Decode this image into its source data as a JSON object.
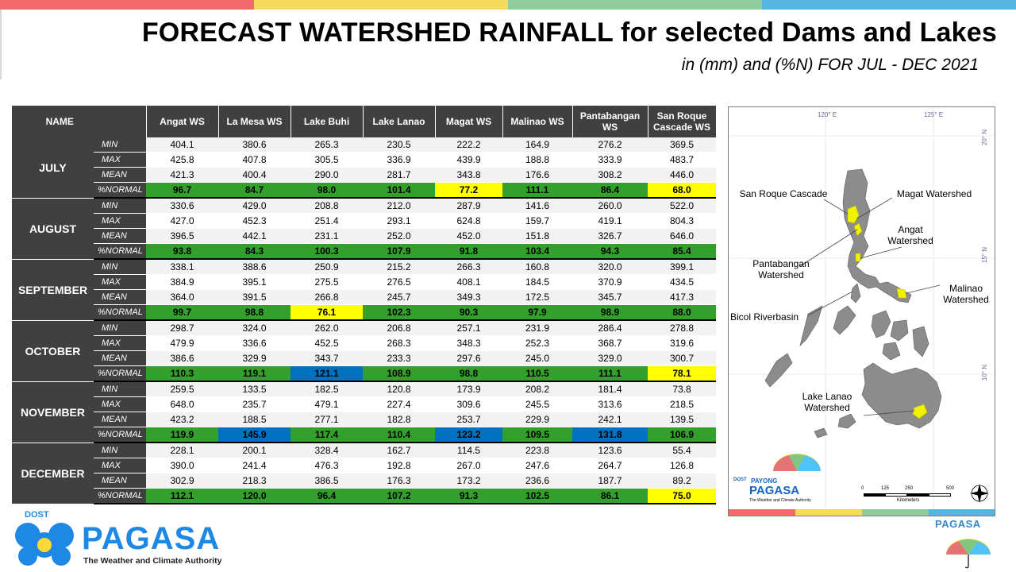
{
  "header": {
    "title": "FORECAST WATERSHED RAINFALL  for selected Dams and Lakes",
    "subtitle": "in (mm) and (%N) FOR JUL - DEC 2021",
    "stripe_colors": [
      "#f26b6b",
      "#f5da5b",
      "#8fcb9b",
      "#55b4e0"
    ]
  },
  "table": {
    "name_header": "NAME",
    "columns": [
      "Angat WS",
      "La Mesa WS",
      "Lake Buhi",
      "Lake Lanao",
      "Magat WS",
      "Malinao WS",
      "Pantabangan WS",
      "San Roque Cascade WS"
    ],
    "row_labels": [
      "MIN",
      "MAX",
      "MEAN",
      "%NORMAL"
    ],
    "months": [
      {
        "name": "JULY",
        "min": [
          "404.1",
          "380.6",
          "265.3",
          "230.5",
          "222.2",
          "164.9",
          "276.2",
          "369.5"
        ],
        "max": [
          "425.8",
          "407.8",
          "305.5",
          "336.9",
          "439.9",
          "188.8",
          "333.9",
          "483.7"
        ],
        "mean": [
          "421.3",
          "400.4",
          "290.0",
          "281.7",
          "343.8",
          "176.6",
          "308.2",
          "446.0"
        ],
        "pct": [
          "96.7",
          "84.7",
          "98.0",
          "101.4",
          "77.2",
          "111.1",
          "86.4",
          "68.0"
        ],
        "pct_colors": [
          "green",
          "green",
          "green",
          "green",
          "yellow",
          "green",
          "green",
          "yellow"
        ]
      },
      {
        "name": "AUGUST",
        "min": [
          "330.6",
          "429.0",
          "208.8",
          "212.0",
          "287.9",
          "141.6",
          "260.0",
          "522.0"
        ],
        "max": [
          "427.0",
          "452.3",
          "251.4",
          "293.1",
          "624.8",
          "159.7",
          "419.1",
          "804.3"
        ],
        "mean": [
          "396.5",
          "442.1",
          "231.1",
          "252.0",
          "452.0",
          "151.8",
          "326.7",
          "646.0"
        ],
        "pct": [
          "93.8",
          "84.3",
          "100.3",
          "107.9",
          "91.8",
          "103.4",
          "94.3",
          "85.4"
        ],
        "pct_colors": [
          "green",
          "green",
          "green",
          "green",
          "green",
          "green",
          "green",
          "green"
        ]
      },
      {
        "name": "SEPTEMBER",
        "min": [
          "338.1",
          "388.6",
          "250.9",
          "215.2",
          "266.3",
          "160.8",
          "320.0",
          "399.1"
        ],
        "max": [
          "384.9",
          "395.1",
          "275.5",
          "276.5",
          "408.1",
          "184.5",
          "370.9",
          "434.5"
        ],
        "mean": [
          "364.0",
          "391.5",
          "266.8",
          "245.7",
          "349.3",
          "172.5",
          "345.7",
          "417.3"
        ],
        "pct": [
          "99.7",
          "98.8",
          "76.1",
          "102.3",
          "90.3",
          "97.9",
          "98.9",
          "88.0"
        ],
        "pct_colors": [
          "green",
          "green",
          "yellow",
          "green",
          "green",
          "green",
          "green",
          "green"
        ]
      },
      {
        "name": "OCTOBER",
        "min": [
          "298.7",
          "324.0",
          "262.0",
          "206.8",
          "257.1",
          "231.9",
          "286.4",
          "278.8"
        ],
        "max": [
          "479.9",
          "336.6",
          "452.5",
          "268.3",
          "348.3",
          "252.3",
          "368.7",
          "319.6"
        ],
        "mean": [
          "386.6",
          "329.9",
          "343.7",
          "233.3",
          "297.6",
          "245.0",
          "329.0",
          "300.7"
        ],
        "pct": [
          "110.3",
          "119.1",
          "121.1",
          "108.9",
          "98.8",
          "110.5",
          "111.1",
          "78.1"
        ],
        "pct_colors": [
          "green",
          "green",
          "blue",
          "green",
          "green",
          "green",
          "green",
          "yellow"
        ]
      },
      {
        "name": "NOVEMBER",
        "min": [
          "259.5",
          "133.5",
          "182.5",
          "120.8",
          "173.9",
          "208.2",
          "181.4",
          "73.8"
        ],
        "max": [
          "648.0",
          "235.7",
          "479.1",
          "227.4",
          "309.6",
          "245.5",
          "313.6",
          "218.5"
        ],
        "mean": [
          "423.2",
          "188.5",
          "277.1",
          "182.8",
          "253.7",
          "229.9",
          "242.1",
          "139.5"
        ],
        "pct": [
          "119.9",
          "145.9",
          "117.4",
          "110.4",
          "123.2",
          "109.5",
          "131.8",
          "106.9"
        ],
        "pct_colors": [
          "green",
          "blue",
          "green",
          "green",
          "blue",
          "green",
          "blue",
          "green"
        ]
      },
      {
        "name": "DECEMBER",
        "min": [
          "228.1",
          "200.1",
          "328.4",
          "162.7",
          "114.5",
          "223.8",
          "123.6",
          "55.4"
        ],
        "max": [
          "390.0",
          "241.4",
          "476.3",
          "192.8",
          "267.0",
          "247.6",
          "264.7",
          "126.8"
        ],
        "mean": [
          "302.9",
          "218.3",
          "386.5",
          "176.3",
          "173.2",
          "236.6",
          "187.7",
          "89.2"
        ],
        "pct": [
          "112.1",
          "120.0",
          "96.4",
          "107.2",
          "91.3",
          "102.5",
          "86.1",
          "75.0"
        ],
        "pct_colors": [
          "green",
          "green",
          "green",
          "green",
          "green",
          "green",
          "green",
          "yellow"
        ]
      }
    ],
    "colors": {
      "green": "#33a02c",
      "yellow": "#ffff00",
      "blue": "#0070c0",
      "header": "#404040"
    }
  },
  "map": {
    "labels": {
      "san_roque": "San Roque Cascade",
      "magat": "Magat Watershed",
      "angat": "Angat Watershed",
      "pantabangan": "Pantabangan Watershed",
      "malinao": "Malinao Watershed",
      "bicol": "Bicol Riverbasin",
      "lanao": "Lake Lanao Watershed"
    },
    "coords": {
      "lon1": "120° E",
      "lon2": "125° E",
      "lat20": "20° N",
      "lat15": "15° N",
      "lat10": "10° N"
    },
    "scale": {
      "ticks": [
        "0",
        "125",
        "250",
        "500"
      ],
      "unit": "Kilometers"
    },
    "logo": {
      "dost": "DOST",
      "payong": "PAYONG",
      "pagasa": "PAGASA",
      "tagline": "The Weather and Climate Authority"
    },
    "watershed_color": "#f2f200"
  },
  "footer": {
    "dost": "DOST",
    "pagasa": "PAGASA",
    "tagline": "The Weather and Climate Authority",
    "right_pagasa": "PAGASA"
  }
}
